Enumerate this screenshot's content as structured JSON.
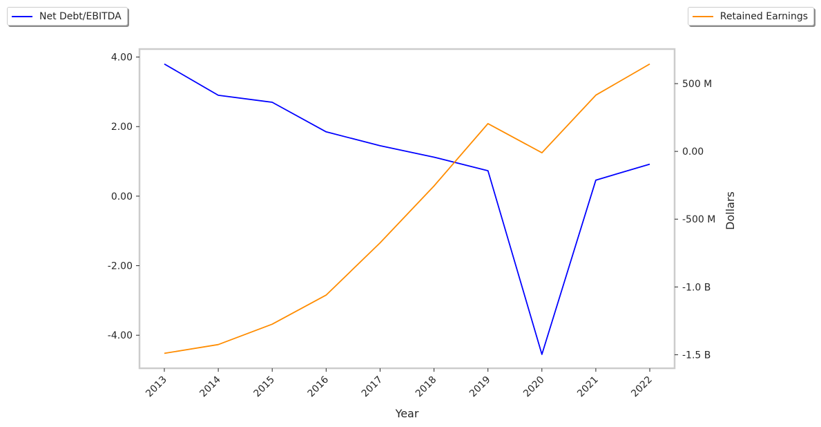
{
  "chart_data": {
    "type": "line",
    "title": "",
    "xlabel": "Year",
    "ylabel_left": "",
    "ylabel_right": "Dollars",
    "x": [
      "2013",
      "2014",
      "2015",
      "2016",
      "2017",
      "2018",
      "2019",
      "2020",
      "2021",
      "2022"
    ],
    "series": [
      {
        "name": "Net Debt/EBITDA",
        "axis": "left",
        "color": "#0000ff",
        "values": [
          3.8,
          2.9,
          2.7,
          1.85,
          1.45,
          1.12,
          0.73,
          -4.55,
          0.46,
          0.92
        ]
      },
      {
        "name": "Retained Earnings",
        "axis": "right",
        "color": "#ff8c00",
        "values": [
          -1490000000,
          -1425000000,
          -1275000000,
          -1060000000,
          -675000000,
          -255000000,
          205000000,
          -10000000,
          415000000,
          645000000
        ]
      }
    ],
    "left_axis": {
      "ylim": [
        -4.95,
        4.23
      ],
      "ticks": [
        4,
        2,
        0,
        -2,
        -4
      ],
      "tick_labels": [
        "4.00",
        "2.00",
        "0.00",
        "-2.00",
        "-4.00"
      ]
    },
    "right_axis": {
      "ylim": [
        -1600000000,
        755000000
      ],
      "ticks": [
        500000000,
        0,
        -500000000,
        -1000000000,
        -1500000000
      ],
      "tick_labels": [
        "500 M",
        "0.00",
        "-500 M",
        "-1.0 B",
        "-1.5 B"
      ]
    },
    "legend_left": "Net Debt/EBITDA",
    "legend_right": "Retained Earnings",
    "grid": false,
    "frame_color": "#cccccc"
  }
}
